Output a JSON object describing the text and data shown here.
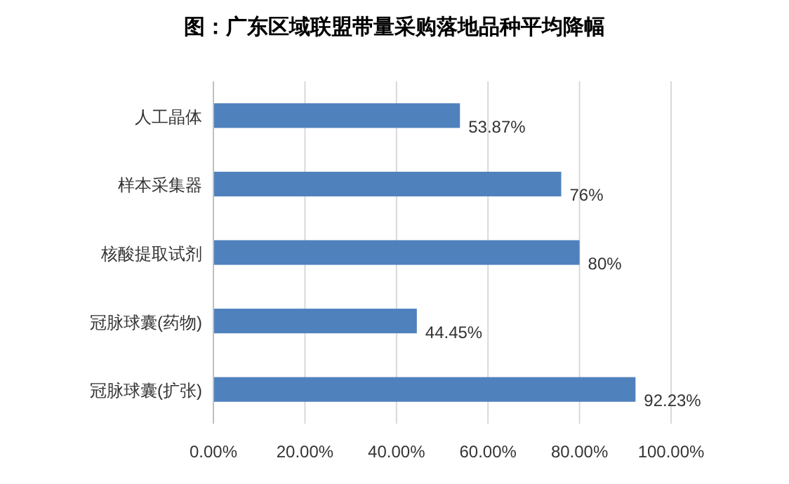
{
  "chart_data": {
    "type": "bar",
    "orientation": "horizontal",
    "title": "图：广东区域联盟带量采购落地品种平均降幅",
    "categories": [
      "人工晶体",
      "样本采集器",
      "核酸提取试剂",
      "冠脉球囊(药物)",
      "冠脉球囊(扩张)"
    ],
    "values": [
      53.87,
      76,
      80,
      44.45,
      92.23
    ],
    "value_labels": [
      "53.87%",
      "76%",
      "80%",
      "44.45%",
      "92.23%"
    ],
    "color": "#4f81bd",
    "xlim": [
      0,
      100
    ],
    "xticks": [
      {
        "value": 0,
        "label": "0.00%"
      },
      {
        "value": 20,
        "label": "20.00%"
      },
      {
        "value": 40,
        "label": "40.00%"
      },
      {
        "value": 60,
        "label": "60.00%"
      },
      {
        "value": 80,
        "label": "80.00%"
      },
      {
        "value": 100,
        "label": "100.00%"
      }
    ],
    "grid": "x"
  }
}
